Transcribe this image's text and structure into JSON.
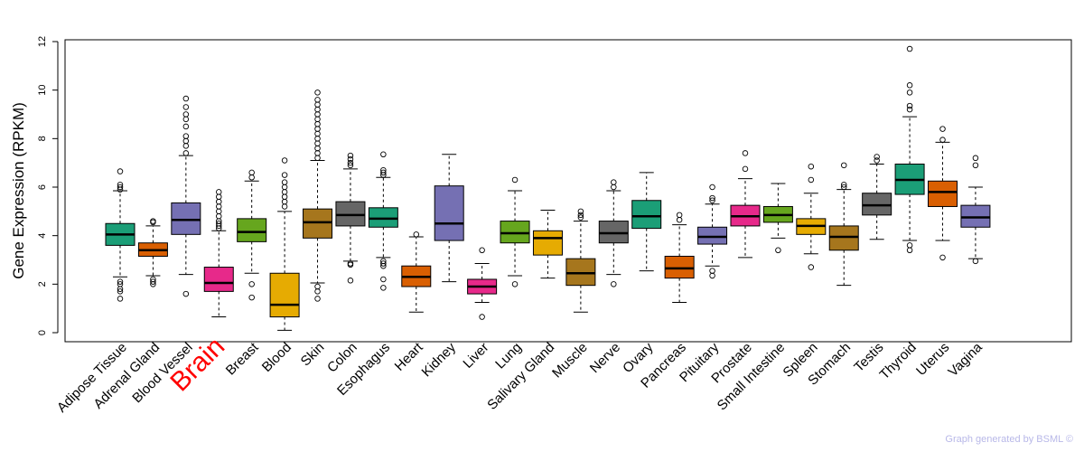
{
  "chart_data": {
    "type": "boxplot",
    "ylabel": "Gene Expression (RPKM)",
    "ylim": [
      0,
      12
    ],
    "yticks": [
      "0",
      "2",
      "4",
      "6",
      "8",
      "10",
      "12"
    ],
    "highlight_category": "Brain",
    "highlight_color": "#ff0000",
    "categories": [
      {
        "label": "Adipose Tissue",
        "color": "#1b9e77",
        "q1": 3.6,
        "median": 4.05,
        "q3": 4.5,
        "wlo": 2.3,
        "whi": 5.85,
        "outliers": [
          1.4,
          1.7,
          1.8,
          2.0,
          2.1,
          5.9,
          6.0,
          6.1,
          6.65
        ]
      },
      {
        "label": "Adrenal Gland",
        "color": "#d95f02",
        "q1": 3.15,
        "median": 3.4,
        "q3": 3.7,
        "wlo": 2.35,
        "whi": 4.4,
        "outliers": [
          2.0,
          2.1,
          2.2,
          4.55,
          4.6
        ]
      },
      {
        "label": "Blood Vessel",
        "color": "#7570b3",
        "q1": 4.05,
        "median": 4.65,
        "q3": 5.35,
        "wlo": 2.4,
        "whi": 7.3,
        "outliers": [
          1.6,
          7.4,
          7.7,
          7.9,
          8.1,
          8.5,
          8.8,
          9.0,
          9.3,
          9.65
        ]
      },
      {
        "label": "Brain",
        "color": "#e7298a",
        "q1": 1.7,
        "median": 2.05,
        "q3": 2.7,
        "wlo": 0.65,
        "whi": 4.2,
        "outliers": [
          4.3,
          4.4,
          4.5,
          4.6,
          4.8,
          5.0,
          5.2,
          5.4,
          5.6,
          5.8
        ]
      },
      {
        "label": "Breast",
        "color": "#66a61e",
        "q1": 3.75,
        "median": 4.15,
        "q3": 4.7,
        "wlo": 2.45,
        "whi": 6.25,
        "outliers": [
          1.45,
          2.0,
          6.4,
          6.6
        ]
      },
      {
        "label": "Blood",
        "color": "#e6ab02",
        "q1": 0.65,
        "median": 1.15,
        "q3": 2.45,
        "wlo": 0.1,
        "whi": 5.0,
        "outliers": [
          5.2,
          5.4,
          5.6,
          5.8,
          6.0,
          6.2,
          6.5,
          7.1
        ]
      },
      {
        "label": "Skin",
        "color": "#a6761d",
        "q1": 3.9,
        "median": 4.55,
        "q3": 5.1,
        "wlo": 2.05,
        "whi": 7.1,
        "outliers": [
          1.4,
          1.7,
          1.9,
          7.2,
          7.4,
          7.6,
          7.8,
          8.0,
          8.2,
          8.4,
          8.6,
          8.8,
          9.0,
          9.2,
          9.4,
          9.6,
          9.9
        ]
      },
      {
        "label": "Colon",
        "color": "#666666",
        "q1": 4.4,
        "median": 4.85,
        "q3": 5.4,
        "wlo": 2.95,
        "whi": 6.75,
        "outliers": [
          2.15,
          2.8,
          2.85,
          6.9,
          7.0,
          7.15,
          7.3
        ]
      },
      {
        "label": "Esophagus",
        "color": "#1b9e77",
        "q1": 4.35,
        "median": 4.7,
        "q3": 5.15,
        "wlo": 3.1,
        "whi": 6.4,
        "outliers": [
          1.85,
          2.2,
          2.75,
          2.85,
          2.95,
          6.5,
          6.6,
          6.7,
          7.35
        ]
      },
      {
        "label": "Heart",
        "color": "#d95f02",
        "q1": 1.9,
        "median": 2.3,
        "q3": 2.75,
        "wlo": 0.85,
        "whi": 3.95,
        "outliers": [
          4.05
        ]
      },
      {
        "label": "Kidney",
        "color": "#7570b3",
        "q1": 3.8,
        "median": 4.5,
        "q3": 6.05,
        "wlo": 2.1,
        "whi": 7.35,
        "outliers": []
      },
      {
        "label": "Liver",
        "color": "#e7298a",
        "q1": 1.6,
        "median": 1.9,
        "q3": 2.2,
        "wlo": 1.25,
        "whi": 2.85,
        "outliers": [
          0.65,
          3.4
        ]
      },
      {
        "label": "Lung",
        "color": "#66a61e",
        "q1": 3.7,
        "median": 4.1,
        "q3": 4.6,
        "wlo": 2.35,
        "whi": 5.85,
        "outliers": [
          2.0,
          6.3
        ]
      },
      {
        "label": "Salivary Gland",
        "color": "#e6ab02",
        "q1": 3.2,
        "median": 3.9,
        "q3": 4.2,
        "wlo": 2.25,
        "whi": 5.05,
        "outliers": []
      },
      {
        "label": "Muscle",
        "color": "#a6761d",
        "q1": 1.95,
        "median": 2.45,
        "q3": 3.05,
        "wlo": 0.85,
        "whi": 4.6,
        "outliers": [
          4.75,
          4.85,
          5.0
        ]
      },
      {
        "label": "Nerve",
        "color": "#666666",
        "q1": 3.7,
        "median": 4.1,
        "q3": 4.6,
        "wlo": 2.4,
        "whi": 5.85,
        "outliers": [
          2.0,
          6.0,
          6.2
        ]
      },
      {
        "label": "Ovary",
        "color": "#1b9e77",
        "q1": 4.3,
        "median": 4.8,
        "q3": 5.45,
        "wlo": 2.55,
        "whi": 6.6,
        "outliers": []
      },
      {
        "label": "Pancreas",
        "color": "#d95f02",
        "q1": 2.25,
        "median": 2.65,
        "q3": 3.15,
        "wlo": 1.25,
        "whi": 4.45,
        "outliers": [
          4.65,
          4.85
        ]
      },
      {
        "label": "Pituitary",
        "color": "#7570b3",
        "q1": 3.65,
        "median": 3.95,
        "q3": 4.35,
        "wlo": 2.75,
        "whi": 5.3,
        "outliers": [
          2.35,
          2.55,
          5.45,
          5.55,
          6.0
        ]
      },
      {
        "label": "Prostate",
        "color": "#e7298a",
        "q1": 4.4,
        "median": 4.8,
        "q3": 5.25,
        "wlo": 3.1,
        "whi": 6.35,
        "outliers": [
          6.75,
          7.4
        ]
      },
      {
        "label": "Small Intestine",
        "color": "#66a61e",
        "q1": 4.55,
        "median": 4.85,
        "q3": 5.2,
        "wlo": 3.9,
        "whi": 6.15,
        "outliers": [
          3.4
        ]
      },
      {
        "label": "Spleen",
        "color": "#e6ab02",
        "q1": 4.05,
        "median": 4.4,
        "q3": 4.7,
        "wlo": 3.25,
        "whi": 5.75,
        "outliers": [
          2.7,
          6.3,
          6.85
        ]
      },
      {
        "label": "Stomach",
        "color": "#a6761d",
        "q1": 3.4,
        "median": 3.95,
        "q3": 4.4,
        "wlo": 1.95,
        "whi": 5.9,
        "outliers": [
          6.0,
          6.1,
          6.9
        ]
      },
      {
        "label": "Testis",
        "color": "#666666",
        "q1": 4.85,
        "median": 5.25,
        "q3": 5.75,
        "wlo": 3.85,
        "whi": 6.95,
        "outliers": [
          7.1,
          7.25
        ]
      },
      {
        "label": "Thyroid",
        "color": "#1b9e77",
        "q1": 5.7,
        "median": 6.3,
        "q3": 6.95,
        "wlo": 3.8,
        "whi": 8.9,
        "outliers": [
          3.4,
          3.6,
          9.2,
          9.35,
          9.9,
          10.2,
          11.7
        ]
      },
      {
        "label": "Uterus",
        "color": "#d95f02",
        "q1": 5.2,
        "median": 5.8,
        "q3": 6.25,
        "wlo": 3.8,
        "whi": 7.85,
        "outliers": [
          3.1,
          7.95,
          8.4
        ]
      },
      {
        "label": "Vagina",
        "color": "#7570b3",
        "q1": 4.35,
        "median": 4.75,
        "q3": 5.25,
        "wlo": 3.05,
        "whi": 6.0,
        "outliers": [
          2.95,
          6.9,
          7.2
        ]
      }
    ]
  },
  "footer": {
    "credit": "Graph generated by BSML ©"
  }
}
